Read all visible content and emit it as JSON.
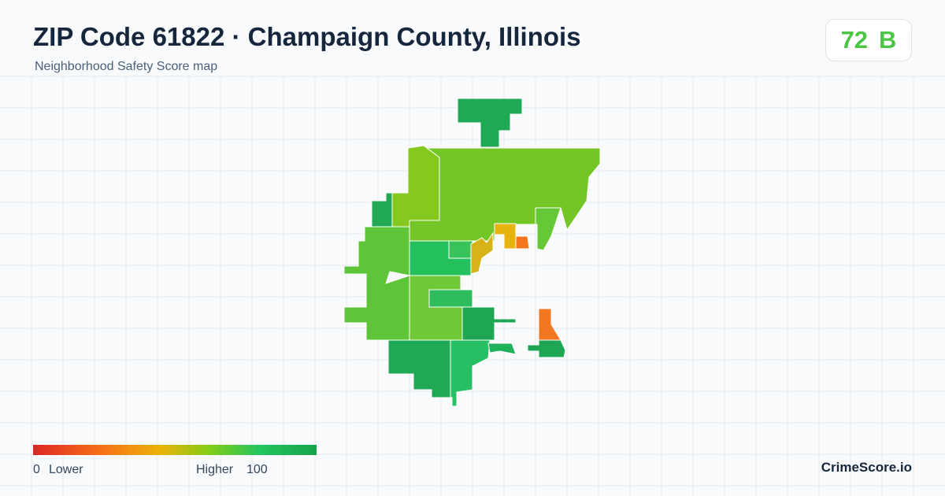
{
  "header": {
    "title": "ZIP Code 61822 · Champaign County, Illinois",
    "subtitle": "Neighborhood Safety Score map"
  },
  "score": {
    "value": 72,
    "grade": "B"
  },
  "legend": {
    "min": 0,
    "min_label": "Lower",
    "max_label": "Higher",
    "max": 100
  },
  "brand": "CrimeScore.io"
}
